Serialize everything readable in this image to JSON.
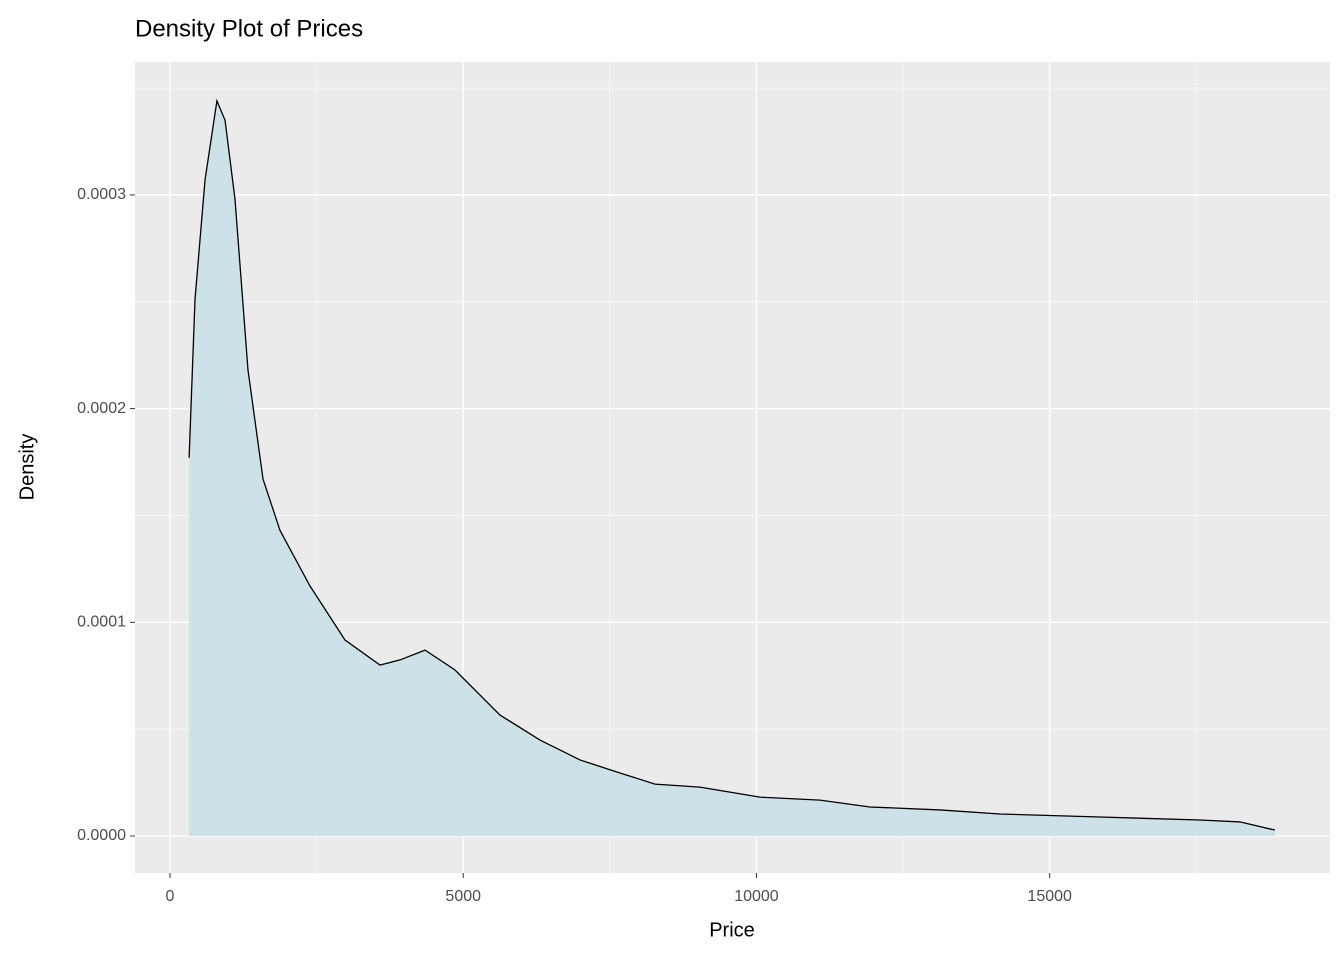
{
  "chart_data": {
    "type": "density",
    "title": "Density Plot of Prices",
    "x_label": "Price",
    "y_label": "Density",
    "x": [
      326,
      426,
      597,
      800,
      938,
      1108,
      1330,
      1586,
      1876,
      2387,
      2984,
      3580,
      3922,
      4348,
      4860,
      5627,
      6309,
      6991,
      7673,
      8270,
      9037,
      10060,
      11083,
      11935,
      13130,
      14152,
      15857,
      17562,
      18244,
      18840
    ],
    "values": [
      0.000177,
      0.000251,
      0.000307,
      0.000344,
      0.000335,
      0.000298,
      0.000218,
      0.000167,
      0.000143,
      0.000117,
      9.17e-05,
      8e-05,
      8.24e-05,
      8.7e-05,
      7.77e-05,
      5.66e-05,
      4.49e-05,
      3.56e-05,
      2.95e-05,
      2.43e-05,
      2.29e-05,
      1.82e-05,
      1.68e-05,
      1.36e-05,
      1.22e-05,
      1.03e-05,
      8.9e-06,
      7.5e-06,
      6.6e-06,
      2.8e-06
    ],
    "fill_color": "#cde2e8",
    "line_color": "#000000",
    "xlim": [
      -597,
      19780
    ],
    "ylim": [
      -1.73e-05,
      0.0003622
    ],
    "xticks": [
      0,
      5000,
      10000,
      15000
    ],
    "yticks": [
      {
        "value": 0,
        "label": "0.0000"
      },
      0.0001,
      0.0002,
      0.0003
    ],
    "x_minor_grid": [
      2500,
      7500,
      12500,
      17500
    ],
    "y_minor_grid": [
      5e-05,
      0.00015,
      0.00025,
      0.00035
    ],
    "grid": true
  }
}
